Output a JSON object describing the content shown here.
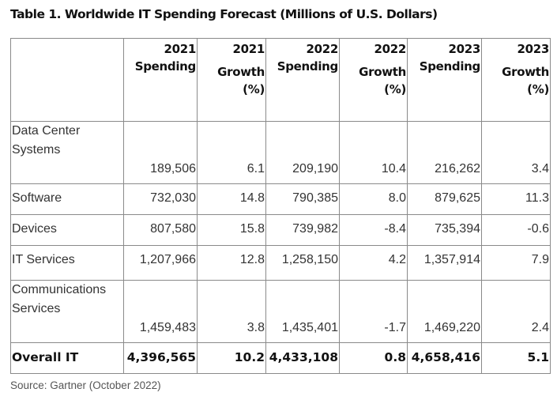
{
  "title": "Table 1. Worldwide IT Spending Forecast (Millions of U.S. Dollars)",
  "table": {
    "headers": [
      {
        "year": "",
        "label": "",
        "pct": ""
      },
      {
        "year": "2021",
        "label": "Spending",
        "pct": ""
      },
      {
        "year": "2021",
        "label": "Growth",
        "pct": "(%)"
      },
      {
        "year": "2022",
        "label": "Spending",
        "pct": ""
      },
      {
        "year": "2022",
        "label": "Growth",
        "pct": "(%)"
      },
      {
        "year": "2023",
        "label": "Spending",
        "pct": ""
      },
      {
        "year": "2023",
        "label": "Growth",
        "pct": "(%)"
      }
    ],
    "rows": [
      {
        "segment": "Data Center Systems",
        "values": [
          "189,506",
          "6.1",
          "209,190",
          "10.4",
          "216,262",
          "3.4"
        ]
      },
      {
        "segment": "Software",
        "values": [
          "732,030",
          "14.8",
          "790,385",
          "8.0",
          "879,625",
          "11.3"
        ]
      },
      {
        "segment": "Devices",
        "values": [
          "807,580",
          "15.8",
          "739,982",
          "-8.4",
          "735,394",
          "-0.6"
        ]
      },
      {
        "segment": "IT Services",
        "values": [
          "1,207,966",
          "12.8",
          "1,258,150",
          "4.2",
          "1,357,914",
          "7.9"
        ]
      },
      {
        "segment": "Communications Services",
        "values": [
          "1,459,483",
          "3.8",
          "1,435,401",
          "-1.7",
          "1,469,220",
          "2.4"
        ]
      },
      {
        "segment": "Overall IT",
        "values": [
          "4,396,565",
          "10.2",
          "4,433,108",
          "0.8",
          "4,658,416",
          "5.1"
        ]
      }
    ]
  },
  "source": "Source: Gartner (October 2022)"
}
